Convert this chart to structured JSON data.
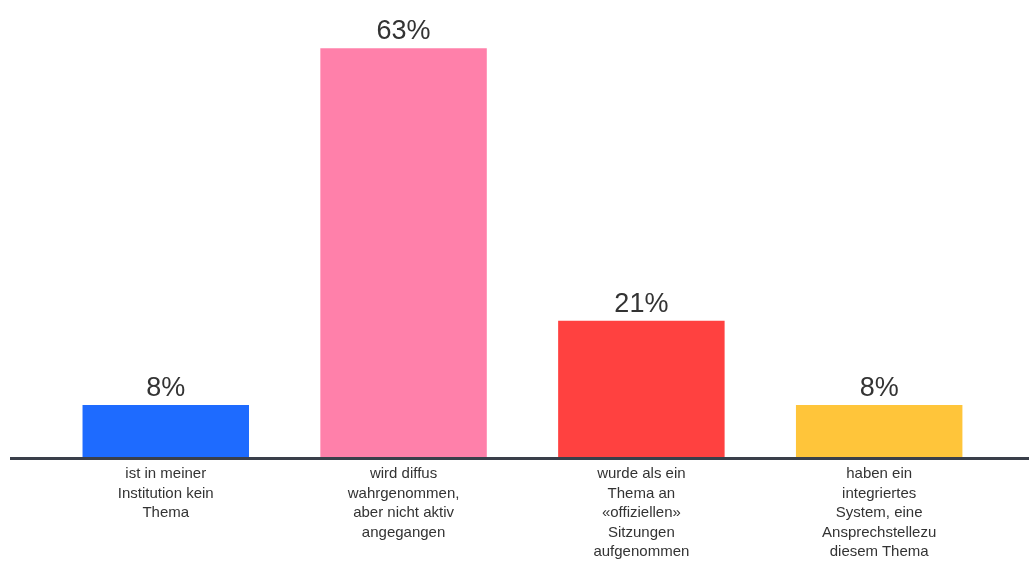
{
  "chart_data": {
    "type": "bar",
    "categories": [
      "ist in meiner Institution kein Thema",
      "wird diffus wahrgenommen, aber nicht aktiv angegangen",
      "wurde als ein Thema an «offiziellen» Sitzungen aufgenommen",
      "haben ein integriertes System, eine Ansprechstellezu diesem Thema"
    ],
    "values": [
      8,
      63,
      21,
      8
    ],
    "value_labels": [
      "8%",
      "63%",
      "21%",
      "8%"
    ],
    "colors": [
      "#1e6bff",
      "#ff80aa",
      "#ff4140",
      "#ffc53a"
    ]
  }
}
